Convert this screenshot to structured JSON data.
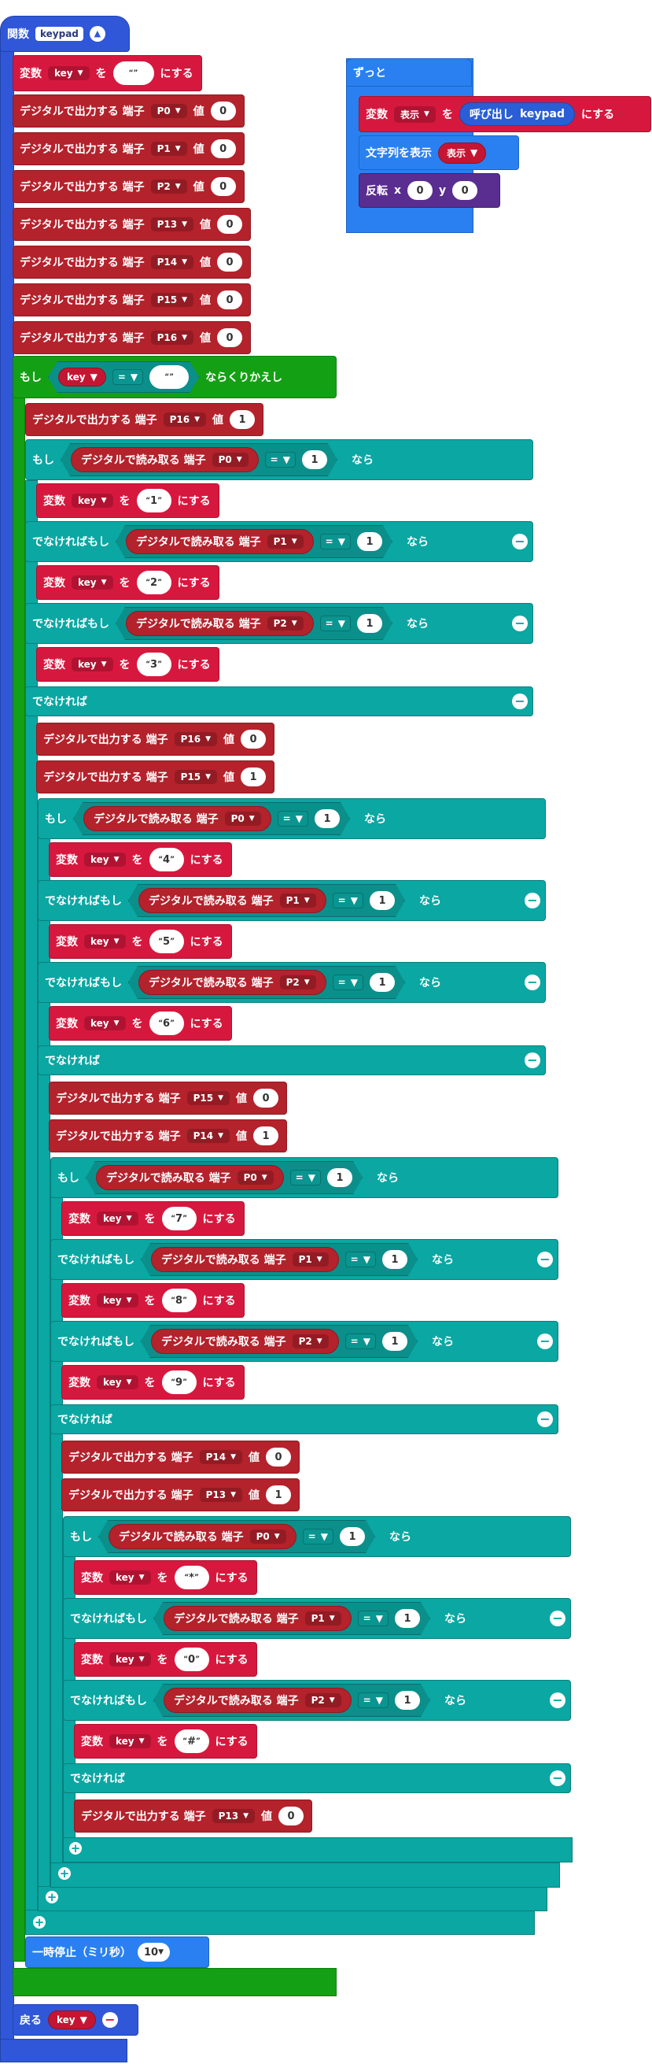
{
  "labels": {
    "function": "関数",
    "variable": "変数",
    "wo": "を",
    "ni_suru": "にする",
    "dig_write": "デジタルで出力する 端子",
    "value": "値",
    "dig_read": "デジタルで読み取る 端子",
    "if": "もし",
    "elif": "でなければもし",
    "else": "でなければ",
    "then": "なら",
    "while": "もし",
    "while_suffix": "ならくりかえし",
    "pause": "一時停止（ミリ秒）",
    "return": "戻る",
    "forever": "ずっと",
    "show_string": "文字列を表示",
    "call": "呼び出し",
    "rotate": "反転",
    "x": "x",
    "y": "y",
    "eq": "=",
    "plus": "+",
    "minus": "−"
  },
  "function_name": "keypad",
  "var_key": "key",
  "var_display": "表示",
  "pins": [
    "P0",
    "P1",
    "P2",
    "P13",
    "P14",
    "P15",
    "P16"
  ],
  "digital_values": [
    "0",
    "1"
  ],
  "keys": [
    "1",
    "2",
    "3",
    "4",
    "5",
    "6",
    "7",
    "8",
    "9",
    "*",
    "0",
    "#"
  ],
  "pause_ms": "10",
  "empty_string": "",
  "rotate_x": "0",
  "rotate_y": "0",
  "colors": {
    "function": "#3057d8",
    "variable": "#d7183e",
    "pins": "#b4222c",
    "logic": "#0aa7a3",
    "loop": "#14a014",
    "basic": "#2a80f0",
    "purple": "#5a2d90"
  }
}
